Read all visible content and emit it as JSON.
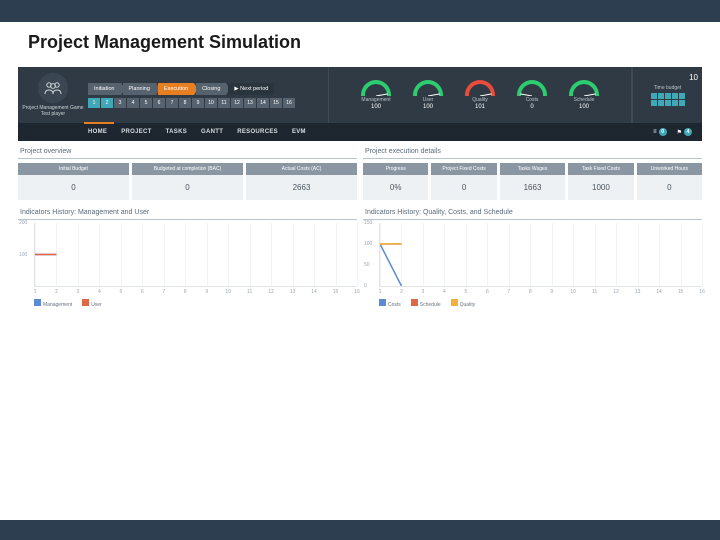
{
  "slide": {
    "title": "Project Management Simulation"
  },
  "colors": {
    "slide_band": "#2c3e50",
    "toolbar_bg": "#2f3a44",
    "navbar_bg": "#1e2730",
    "accent_orange": "#e67e22",
    "kpi_header_bg": "#8a97a3",
    "kpi_value_bg": "#eef1f3",
    "grid": "#f0f2f4",
    "axis": "#e2e6ea",
    "text_muted": "#9aa5af"
  },
  "avatar": {
    "line1": "Project Management Game",
    "line2": "Test player"
  },
  "phases": [
    {
      "label": "Initiation",
      "bg": "#56626d"
    },
    {
      "label": "Planning",
      "bg": "#56626d"
    },
    {
      "label": "Execution",
      "bg": "#e67e22"
    },
    {
      "label": "Closing",
      "bg": "#56626d"
    },
    {
      "label": "▶ Next period",
      "bg": "#2a343d"
    }
  ],
  "periods": {
    "count": 16,
    "active": 2,
    "active_bg": "#3fa9b8",
    "inactive_bg": "#56626d"
  },
  "gauges": [
    {
      "label": "Management",
      "value": "100",
      "color": "#2ecc71",
      "angle": 80
    },
    {
      "label": "User",
      "value": "100",
      "color": "#2ecc71",
      "angle": 80
    },
    {
      "label": "Quality",
      "value": "101",
      "color": "#e74c3c",
      "angle": 80
    },
    {
      "label": "Costs",
      "value": "0",
      "color": "#2ecc71",
      "angle": -80
    },
    {
      "label": "Schedule",
      "value": "100",
      "color": "#2ecc71",
      "angle": 80
    }
  ],
  "timebudget": {
    "label": "Time budget",
    "value": "10",
    "cells": 10,
    "cell_color": "#3fa9b8"
  },
  "nav": {
    "items": [
      "HOME",
      "PROJECT",
      "TASKS",
      "GANTT",
      "RESOURCES",
      "EVM"
    ],
    "active_index": 0,
    "badges": [
      {
        "icon": "≡",
        "count": "0",
        "color": "#3fa9b8"
      },
      {
        "icon": "⚑",
        "count": "4",
        "color": "#3fa9b8"
      }
    ]
  },
  "overview": {
    "title": "Project overview",
    "kpis": [
      {
        "label": "Initial Budget",
        "value": "0"
      },
      {
        "label": "Budgeted at completion (BAC)",
        "value": "0"
      },
      {
        "label": "Actual Costs (AC)",
        "value": "2663"
      }
    ]
  },
  "execution": {
    "title": "Project execution details",
    "kpis": [
      {
        "label": "Progress",
        "value": "0%"
      },
      {
        "label": "Project Fixed Costs",
        "value": "0"
      },
      {
        "label": "Tasks Wages",
        "value": "1663"
      },
      {
        "label": "Task Fixed Costs",
        "value": "1000"
      },
      {
        "label": "Unworked Hours",
        "value": "0"
      }
    ]
  },
  "chart_left": {
    "title": "Indicators History: Management and User",
    "type": "line",
    "ylim": [
      0,
      200
    ],
    "yticks": [
      200,
      100
    ],
    "xlim": [
      1,
      16
    ],
    "xticks": [
      1,
      2,
      3,
      4,
      5,
      6,
      7,
      8,
      9,
      10,
      11,
      12,
      13,
      14,
      15,
      16
    ],
    "series": [
      {
        "name": "Management",
        "color": "#5b8bd4",
        "points": [
          [
            1,
            100
          ],
          [
            2,
            100
          ]
        ]
      },
      {
        "name": "User",
        "color": "#e06648",
        "points": [
          [
            1,
            100
          ],
          [
            2,
            100
          ]
        ]
      }
    ]
  },
  "chart_right": {
    "title": "Indicators History: Quality, Costs, and Schedule",
    "type": "line",
    "ylim": [
      0,
      150
    ],
    "yticks": [
      150,
      100,
      50,
      0
    ],
    "xlim": [
      1,
      16
    ],
    "xticks": [
      1,
      2,
      3,
      4,
      5,
      6,
      7,
      8,
      9,
      10,
      11,
      12,
      13,
      14,
      15,
      16
    ],
    "series": [
      {
        "name": "Costs",
        "color": "#5b8bd4",
        "points": [
          [
            1,
            100
          ],
          [
            2,
            0
          ]
        ]
      },
      {
        "name": "Schedule",
        "color": "#e06648",
        "points": [
          [
            1,
            100
          ],
          [
            2,
            100
          ]
        ]
      },
      {
        "name": "Quality",
        "color": "#f1b13c",
        "points": [
          [
            1,
            100
          ],
          [
            2,
            101
          ]
        ]
      }
    ]
  }
}
